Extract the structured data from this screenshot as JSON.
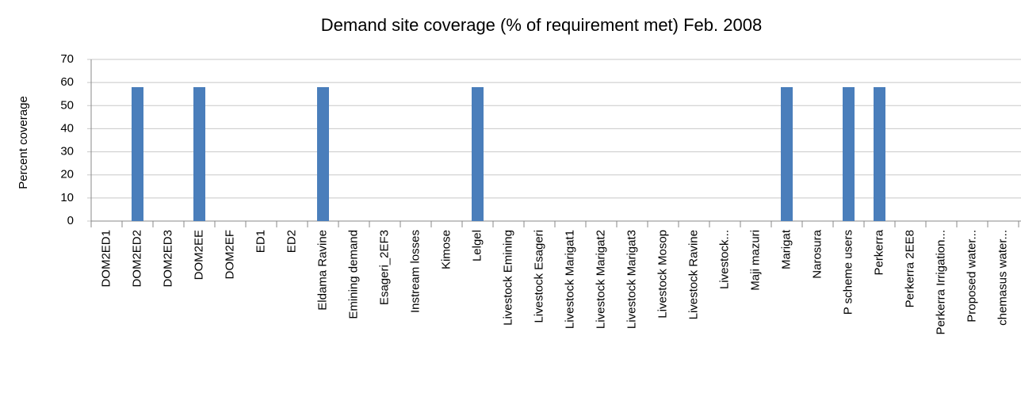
{
  "chart_data": {
    "type": "bar",
    "title": "Demand site coverage (% of requirement met) Feb. 2008",
    "y_label": "Percent coverage",
    "categories": [
      "DOM2ED1",
      "DOM2ED2",
      "DOM2ED3",
      "DOM2EE",
      "DOM2EF",
      "ED1",
      "ED2",
      "Eldama Ravine",
      "Emining demand",
      "Esageri_2EF3",
      "Instream losses",
      "Kimose",
      "Lelgel",
      "Livestock Emining",
      "Livestock Esageri",
      "Livestock Marigat1",
      "Livestock Marigat2",
      "Livestock Marigat3",
      "Livestock Mosop",
      "Livestock Ravine",
      "Livestock...",
      "Maji mazuri",
      "Marigat",
      "Narosura",
      "P scheme users",
      "Perkerra",
      "Perkerra 2EE8",
      "Perkerra Irrigation...",
      "Proposed water...",
      "chemasus water..."
    ],
    "values": [
      0,
      58,
      0,
      58,
      0,
      0,
      0,
      58,
      0,
      0,
      0,
      0,
      58,
      0,
      0,
      0,
      0,
      0,
      0,
      0,
      0,
      0,
      58,
      0,
      58,
      58,
      0,
      0,
      0,
      0
    ],
    "color": "#4a7ebb",
    "ylim": [
      0,
      70
    ],
    "yticks": [
      0,
      10,
      20,
      30,
      40,
      50,
      60,
      70
    ],
    "grid": true
  }
}
